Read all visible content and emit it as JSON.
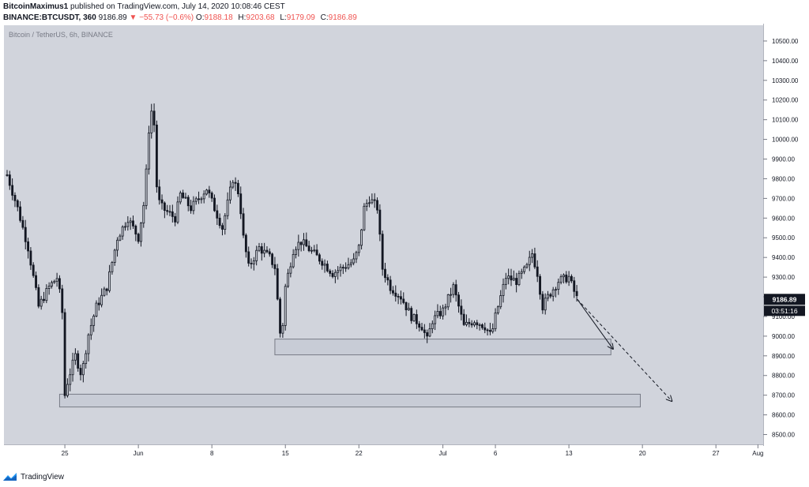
{
  "header": {
    "author": "BitcoinMaximus1",
    "published": "published on TradingView.com, July 14, 2020 10:08:46 CEST",
    "symbol": "BINANCE:BTCUSDT, 360",
    "last": "9186.89",
    "change_arrow": "▼",
    "change": "−55.73 (−0.6%)",
    "o_label": "O:",
    "o_value": "9188.18",
    "h_label": "H:",
    "h_value": "9203.68",
    "l_label": "L:",
    "l_value": "9179.09",
    "c_label": "C:",
    "c_value": "9186.89"
  },
  "footer": {
    "brand": "TradingView",
    "logo_icon": "tradingview-logo-icon"
  },
  "colors": {
    "plot_bg": "#d1d4dc",
    "candle": "#131722",
    "price_tag_bg": "#131722",
    "price_tag_text": "#ffffff",
    "zone_fill": "#c8ccd6",
    "zone_stroke": "#787b86"
  },
  "chart_data": {
    "type": "candlestick",
    "title": "Bitcoin / TetherUS, 6h, BINANCE",
    "ylim": [
      8450,
      10580
    ],
    "y_ticks": [
      8500,
      8600,
      8700,
      8800,
      8900,
      9000,
      9100,
      9200,
      9300,
      9400,
      9500,
      9600,
      9700,
      9800,
      9900,
      10000,
      10100,
      10200,
      10300,
      10400,
      10500
    ],
    "y_tick_labels": [
      "8500.00",
      "8600.00",
      "8700.00",
      "8800.00",
      "8900.00",
      "9000.00",
      "9100.00",
      "9200.00",
      "9300.00",
      "9400.00",
      "9500.00",
      "9600.00",
      "9700.00",
      "9800.00",
      "9900.00",
      "10000.00",
      "10100.00",
      "10200.00",
      "10300.00",
      "10400.00",
      "10500.00"
    ],
    "x_range_day": [
      -4.8,
      67.5
    ],
    "x_ticks": [
      {
        "day": 1,
        "label": "25"
      },
      {
        "day": 8,
        "label": "Jun"
      },
      {
        "day": 15,
        "label": "8"
      },
      {
        "day": 22,
        "label": "15"
      },
      {
        "day": 29,
        "label": "22"
      },
      {
        "day": 37,
        "label": "Jul"
      },
      {
        "day": 42,
        "label": "6"
      },
      {
        "day": 49,
        "label": "13"
      },
      {
        "day": 56,
        "label": "20"
      },
      {
        "day": 63,
        "label": "27"
      },
      {
        "day": 67,
        "label": "Aug"
      }
    ],
    "last_price_label": "9186.89",
    "last_price": 9186.89,
    "countdown_label": "03:51:16",
    "path_keypoints": [
      [
        -4.5,
        9820
      ],
      [
        -3.5,
        9650
      ],
      [
        -2.5,
        9450
      ],
      [
        -1.5,
        9150
      ],
      [
        -0.5,
        9250
      ],
      [
        0.3,
        9300
      ],
      [
        0.8,
        9100
      ],
      [
        1.0,
        8700
      ],
      [
        1.3,
        8780
      ],
      [
        2.0,
        8900
      ],
      [
        2.6,
        8800
      ],
      [
        3.2,
        9000
      ],
      [
        4.0,
        9150
      ],
      [
        5.0,
        9250
      ],
      [
        6.0,
        9500
      ],
      [
        7.0,
        9600
      ],
      [
        7.5,
        9550
      ],
      [
        8.0,
        9500
      ],
      [
        8.6,
        9700
      ],
      [
        9.0,
        10050
      ],
      [
        9.4,
        10200
      ],
      [
        9.8,
        9700
      ],
      [
        10.3,
        9650
      ],
      [
        11.5,
        9600
      ],
      [
        12.0,
        9720
      ],
      [
        13.0,
        9650
      ],
      [
        14.5,
        9750
      ],
      [
        16.0,
        9550
      ],
      [
        17.0,
        9800
      ],
      [
        17.6,
        9720
      ],
      [
        18.0,
        9500
      ],
      [
        18.5,
        9350
      ],
      [
        19.5,
        9450
      ],
      [
        20.5,
        9400
      ],
      [
        21.0,
        9350
      ],
      [
        21.6,
        8950
      ],
      [
        22.0,
        9250
      ],
      [
        22.8,
        9450
      ],
      [
        23.5,
        9480
      ],
      [
        24.5,
        9430
      ],
      [
        25.5,
        9380
      ],
      [
        26.5,
        9320
      ],
      [
        27.5,
        9350
      ],
      [
        28.5,
        9380
      ],
      [
        29.0,
        9450
      ],
      [
        29.5,
        9650
      ],
      [
        30.0,
        9700
      ],
      [
        30.8,
        9650
      ],
      [
        31.2,
        9350
      ],
      [
        32.0,
        9250
      ],
      [
        33.0,
        9200
      ],
      [
        34.0,
        9100
      ],
      [
        35.0,
        9050
      ],
      [
        35.5,
        8980
      ],
      [
        36.0,
        9080
      ],
      [
        37.0,
        9130
      ],
      [
        38.0,
        9250
      ],
      [
        38.5,
        9150
      ],
      [
        39.0,
        9050
      ],
      [
        40.0,
        9080
      ],
      [
        41.0,
        9050
      ],
      [
        41.6,
        9000
      ],
      [
        42.0,
        9100
      ],
      [
        43.0,
        9300
      ],
      [
        44.0,
        9280
      ],
      [
        45.0,
        9350
      ],
      [
        45.5,
        9420
      ],
      [
        46.0,
        9320
      ],
      [
        46.5,
        9150
      ],
      [
        47.0,
        9200
      ],
      [
        48.0,
        9280
      ],
      [
        49.0,
        9300
      ],
      [
        49.4,
        9240
      ],
      [
        49.8,
        9187
      ]
    ],
    "zones": [
      {
        "from_day": 21.0,
        "to_day": 53.0,
        "low": 8905,
        "high": 8985
      },
      {
        "from_day": 0.5,
        "to_day": 55.8,
        "low": 8640,
        "high": 8705
      }
    ],
    "arrows": [
      {
        "from_day": 49.8,
        "to_day": 53.2,
        "from_price": 9187,
        "to_price": 8935,
        "style": "solid"
      },
      {
        "from_day": 49.8,
        "to_day": 58.8,
        "from_price": 9187,
        "to_price": 8670,
        "style": "dashed"
      }
    ]
  }
}
